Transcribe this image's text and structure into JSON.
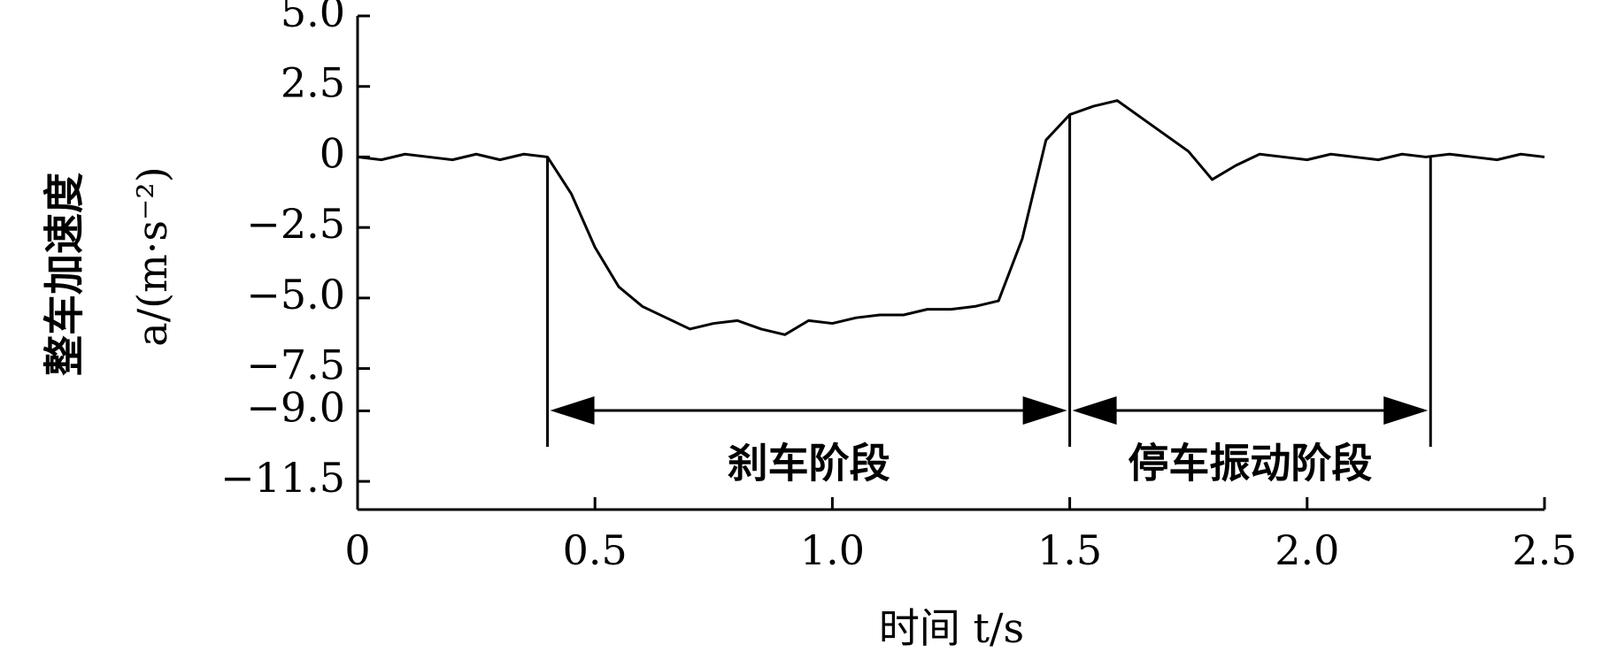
{
  "chart_data": {
    "type": "line",
    "y_label_cn": "整车加速度",
    "y_label": "a/(m·s⁻²)",
    "x_label": "时间 t/s",
    "x": [
      0,
      0.05,
      0.1,
      0.15,
      0.2,
      0.25,
      0.3,
      0.35,
      0.4,
      0.45,
      0.5,
      0.55,
      0.6,
      0.65,
      0.7,
      0.75,
      0.8,
      0.85,
      0.9,
      0.95,
      1.0,
      1.05,
      1.1,
      1.15,
      1.2,
      1.25,
      1.3,
      1.35,
      1.4,
      1.45,
      1.5,
      1.55,
      1.6,
      1.65,
      1.7,
      1.75,
      1.8,
      1.85,
      1.9,
      1.95,
      2.0,
      2.05,
      2.1,
      2.15,
      2.2,
      2.25,
      2.3,
      2.35,
      2.4,
      2.45,
      2.5
    ],
    "series": [
      {
        "color": "#000000",
        "values": [
          0,
          -0.1,
          0.1,
          0,
          -0.1,
          0.1,
          -0.1,
          0.1,
          0,
          -1.3,
          -3.2,
          -4.6,
          -5.3,
          -5.7,
          -6.1,
          -5.9,
          -5.8,
          -6.1,
          -6.3,
          -5.8,
          -5.9,
          -5.7,
          -5.6,
          -5.6,
          -5.4,
          -5.4,
          -5.3,
          -5.1,
          -2.9,
          0.6,
          1.5,
          1.8,
          2.0,
          1.4,
          0.8,
          0.2,
          -0.8,
          -0.3,
          0.1,
          0,
          -0.1,
          0.1,
          0,
          -0.1,
          0.1,
          0,
          0.1,
          0,
          -0.1,
          0.1,
          0
        ]
      }
    ],
    "xlim": [
      0,
      2.5
    ],
    "xticks": [
      0,
      {
        "value": 0.5,
        "label": "0.5"
      },
      {
        "value": 1,
        "label": "1.0"
      },
      {
        "value": 1.5,
        "label": "1.5"
      },
      {
        "value": 2,
        "label": "2.0"
      },
      {
        "value": 2.5,
        "label": "2.5"
      }
    ],
    "ylim": [
      -12.5,
      5
    ],
    "yticks": [
      {
        "value": 5,
        "label": "5.0"
      },
      {
        "value": 2.5,
        "label": "2.5"
      },
      0,
      {
        "value": -2.5,
        "label": "−2.5"
      },
      {
        "value": -5,
        "label": "−5.0"
      },
      {
        "value": -7.5,
        "label": "−7.5"
      },
      {
        "value": -9,
        "label": "−9.0"
      },
      {
        "value": -11.5,
        "label": "−11.5"
      }
    ],
    "phases": [
      {
        "label": "刹车阶段",
        "start": 0.4,
        "end": 1.5
      },
      {
        "label": "停车振动阶段",
        "start": 1.5,
        "end": 2.26
      }
    ]
  }
}
